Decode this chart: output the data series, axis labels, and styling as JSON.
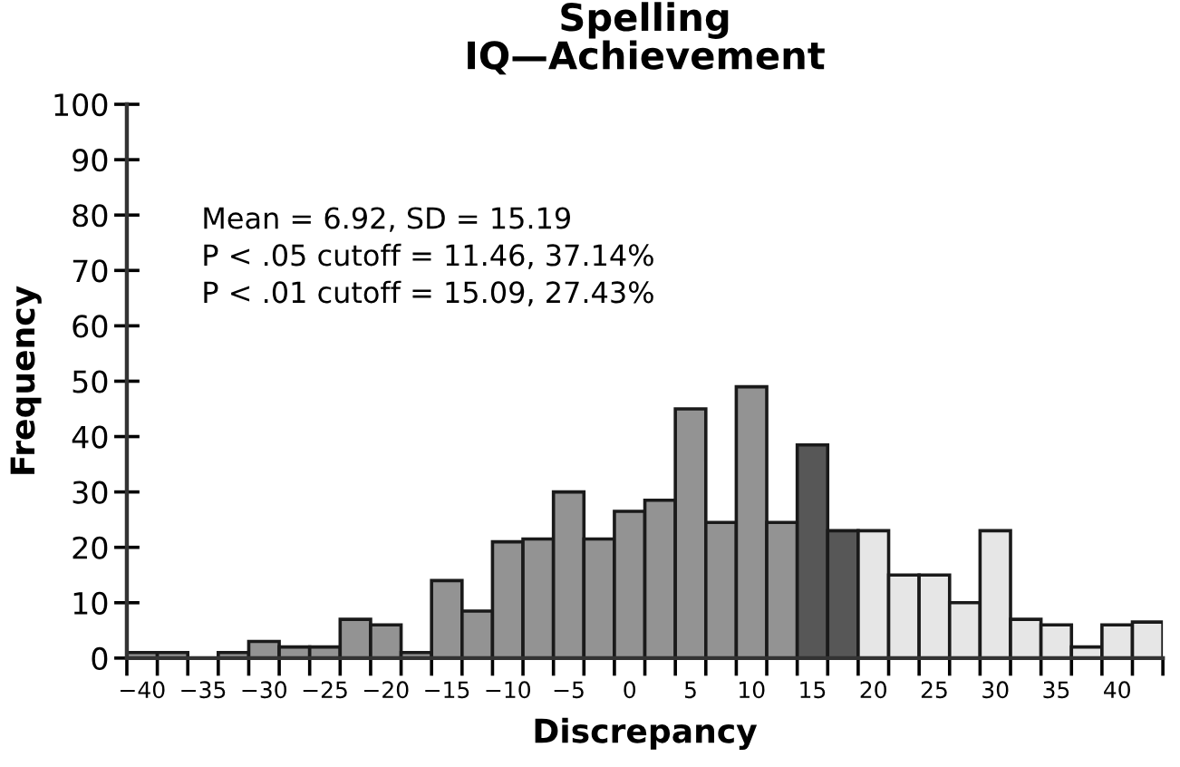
{
  "chart_data": {
    "type": "histogram",
    "title": "Spelling\nIQ—Achievement",
    "xlabel": "Discrepancy",
    "ylabel": "Frequency",
    "bins": [
      -41.25,
      -38.75,
      -36.25,
      -33.75,
      -31.25,
      -28.75,
      -26.25,
      -23.75,
      -21.25,
      -18.75,
      -16.25,
      -13.75,
      -11.25,
      -8.75,
      -6.25,
      -3.75,
      -1.25,
      1.25,
      3.75,
      6.25,
      8.75,
      11.25,
      13.75,
      16.25,
      18.75,
      21.25,
      23.75,
      26.25,
      28.75,
      31.25,
      33.75,
      36.25,
      38.75,
      41.25,
      43.75
    ],
    "values": [
      1,
      1,
      0,
      1,
      3,
      2,
      2,
      7,
      6,
      1,
      14,
      8.5,
      21,
      21.5,
      30,
      21.5,
      26.5,
      28.5,
      45,
      24.5,
      49,
      24.5,
      38.5,
      23,
      23,
      15,
      15,
      10,
      23,
      7,
      6,
      2,
      6,
      6.5
    ],
    "colors": [
      "#939393",
      "#939393",
      "#939393",
      "#939393",
      "#939393",
      "#939393",
      "#939393",
      "#939393",
      "#939393",
      "#939393",
      "#939393",
      "#939393",
      "#939393",
      "#939393",
      "#939393",
      "#939393",
      "#939393",
      "#939393",
      "#939393",
      "#939393",
      "#939393",
      "#939393",
      "#575757",
      "#575757",
      "#e6e6e6",
      "#e6e6e6",
      "#e6e6e6",
      "#e6e6e6",
      "#e6e6e6",
      "#e6e6e6",
      "#e6e6e6",
      "#e6e6e6",
      "#e6e6e6",
      "#e6e6e6"
    ],
    "xlim": [
      -41.25,
      43.75
    ],
    "xticks": [
      {
        "value": -40,
        "label": "−40"
      },
      {
        "value": -35,
        "label": "−35"
      },
      {
        "value": -30,
        "label": "−30"
      },
      {
        "value": -25,
        "label": "−25"
      },
      {
        "value": -20,
        "label": "−20"
      },
      {
        "value": -15,
        "label": "−15"
      },
      {
        "value": -10,
        "label": "−10"
      },
      {
        "value": -5,
        "label": "−5"
      },
      0,
      5,
      10,
      15,
      20,
      25,
      30,
      35,
      40,
      {
        "value": -41.25,
        "label": null
      },
      {
        "value": -38.75,
        "label": null
      },
      {
        "value": -36.25,
        "label": null
      },
      {
        "value": -33.75,
        "label": null
      },
      {
        "value": -31.25,
        "label": null
      },
      {
        "value": -28.75,
        "label": null
      },
      {
        "value": -26.25,
        "label": null
      },
      {
        "value": -23.75,
        "label": null
      },
      {
        "value": -21.25,
        "label": null
      },
      {
        "value": -18.75,
        "label": null
      },
      {
        "value": -16.25,
        "label": null
      },
      {
        "value": -13.75,
        "label": null
      },
      {
        "value": -11.25,
        "label": null
      },
      {
        "value": -8.75,
        "label": null
      },
      {
        "value": -6.25,
        "label": null
      },
      {
        "value": -3.75,
        "label": null
      },
      {
        "value": -1.25,
        "label": null
      },
      {
        "value": 1.25,
        "label": null
      },
      {
        "value": 3.75,
        "label": null
      },
      {
        "value": 6.25,
        "label": null
      },
      {
        "value": 8.75,
        "label": null
      },
      {
        "value": 11.25,
        "label": null
      },
      {
        "value": 13.75,
        "label": null
      },
      {
        "value": 16.25,
        "label": null
      },
      {
        "value": 18.75,
        "label": null
      },
      {
        "value": 21.25,
        "label": null
      },
      {
        "value": 23.75,
        "label": null
      },
      {
        "value": 26.25,
        "label": null
      },
      {
        "value": 28.75,
        "label": null
      },
      {
        "value": 31.25,
        "label": null
      },
      {
        "value": 33.75,
        "label": null
      },
      {
        "value": 36.25,
        "label": null
      },
      {
        "value": 38.75,
        "label": null
      },
      {
        "value": 41.25,
        "label": null
      },
      {
        "value": 43.75,
        "label": null
      }
    ],
    "ylim": [
      0,
      100
    ],
    "yticks": [
      0,
      10,
      20,
      30,
      40,
      50,
      60,
      70,
      80,
      90,
      100
    ],
    "annotations": [
      "Mean = 6.92, SD = 15.19",
      "P < .05 cutoff = 11.46, 37.14%",
      "P < .01 cutoff = 15.09, 27.43%"
    ],
    "grid": false,
    "legend": false
  }
}
